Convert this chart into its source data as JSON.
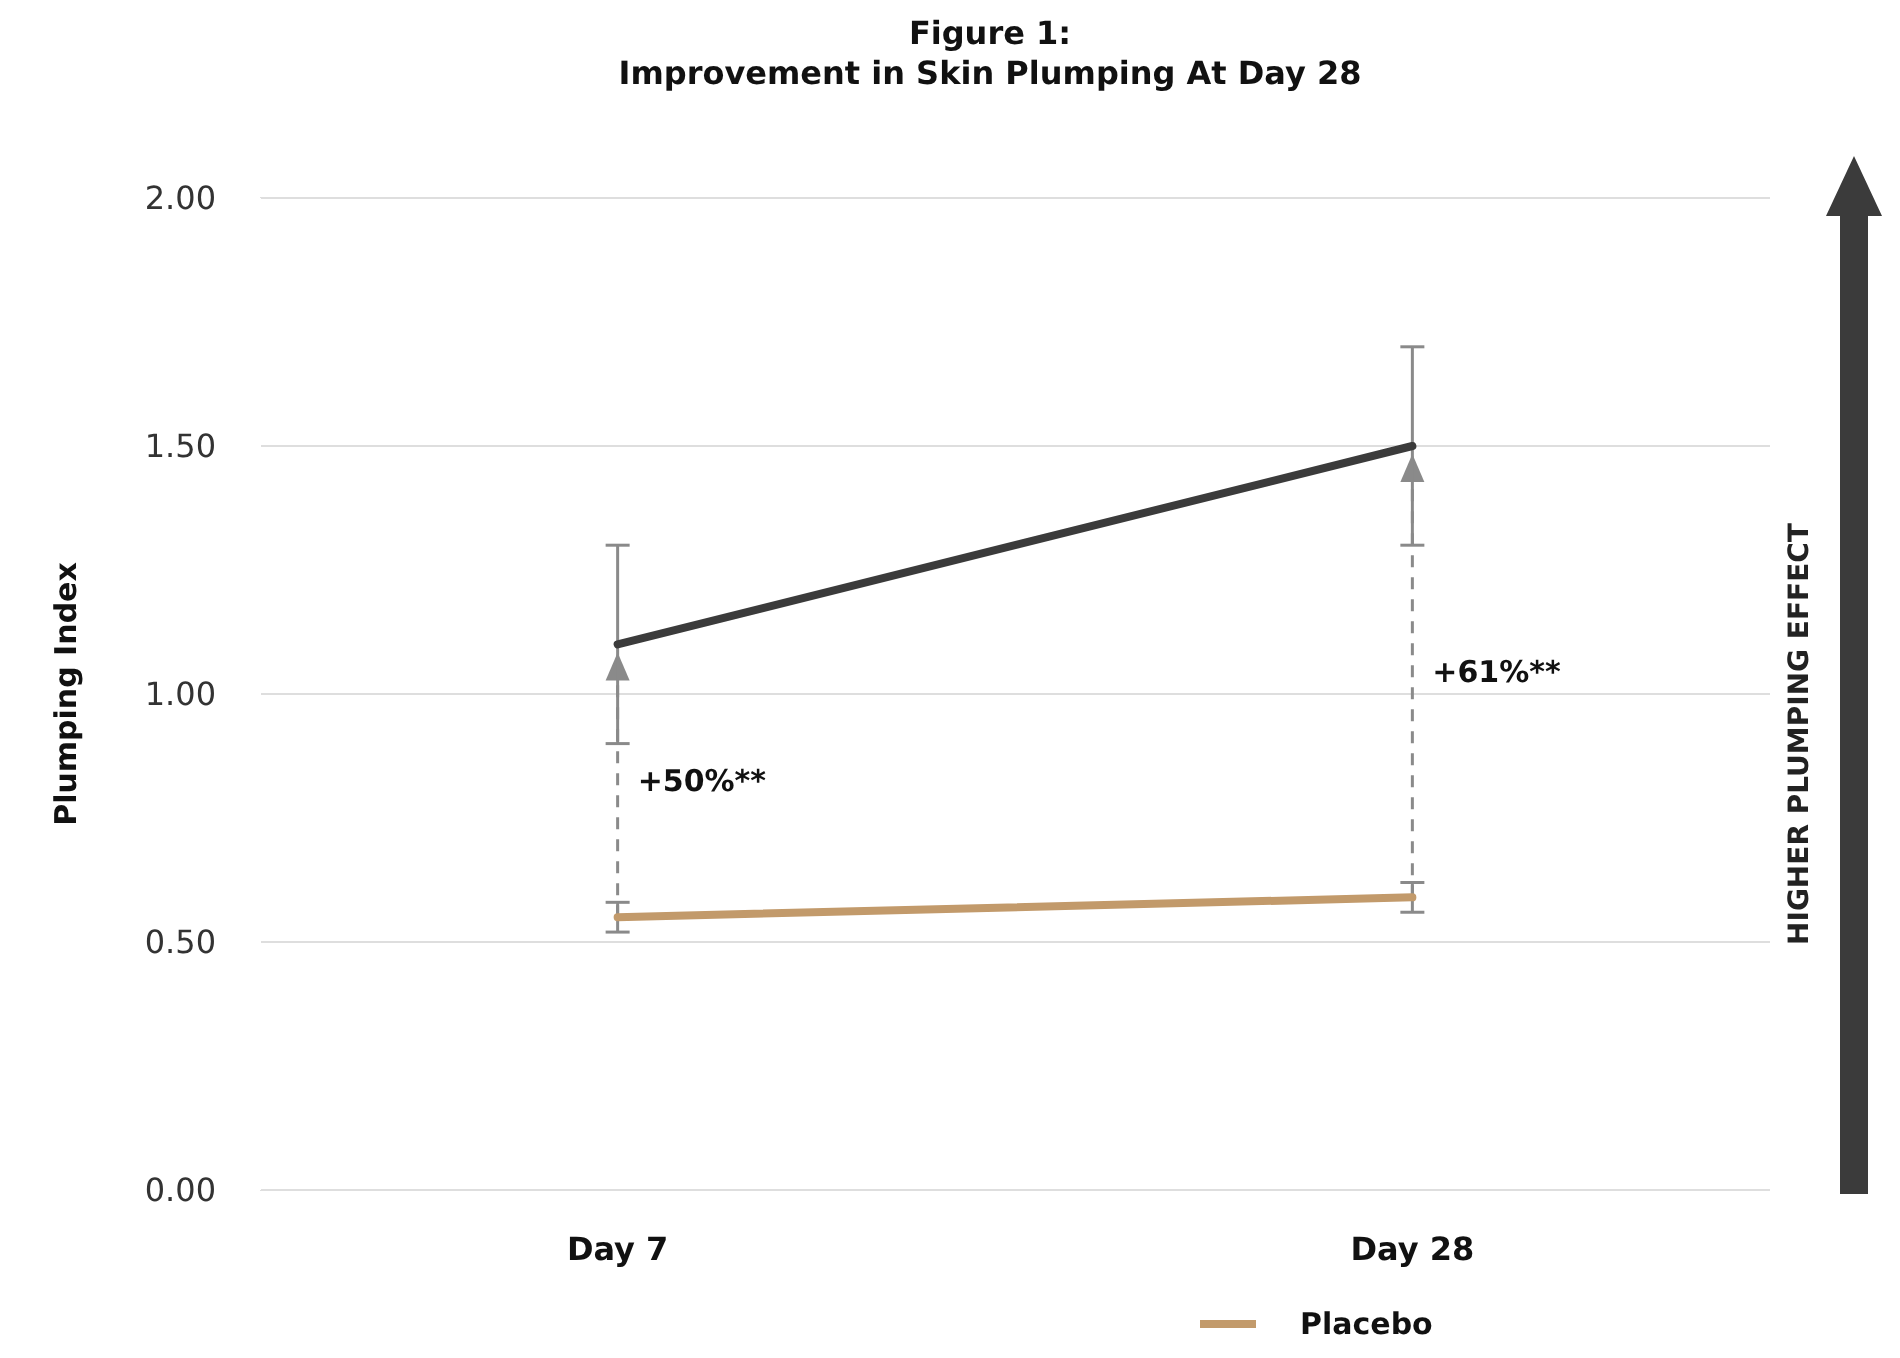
{
  "chart_data": {
    "type": "line",
    "title": "Figure 1:",
    "subtitle": "Improvement in Skin Plumping At Day 28",
    "ylabel": "Plumping Index",
    "categories": [
      "Day 7",
      "Day 28"
    ],
    "series": [
      {
        "color": "#3b3b3b",
        "values": [
          1.1,
          1.5
        ],
        "errors": [
          0.2,
          0.2
        ]
      },
      {
        "name": "Placebo",
        "color": "#c29a6b",
        "values": [
          0.55,
          0.59
        ],
        "errors": [
          0.03,
          0.03
        ]
      }
    ],
    "ylim": [
      0,
      2
    ],
    "yticks": [
      {
        "value": 0,
        "label": "0.00"
      },
      {
        "value": 0.5,
        "label": "0.50"
      },
      {
        "value": 1,
        "label": "1.00"
      },
      {
        "value": 1.5,
        "label": "1.50"
      },
      {
        "value": 2,
        "label": "2.00"
      }
    ],
    "grid": "y",
    "legend": "bottom",
    "marker": "none",
    "line_style": "solid",
    "annotations": [
      "+50%**",
      "+61%**",
      "HIGHER PLUMPING EFFECT"
    ]
  }
}
